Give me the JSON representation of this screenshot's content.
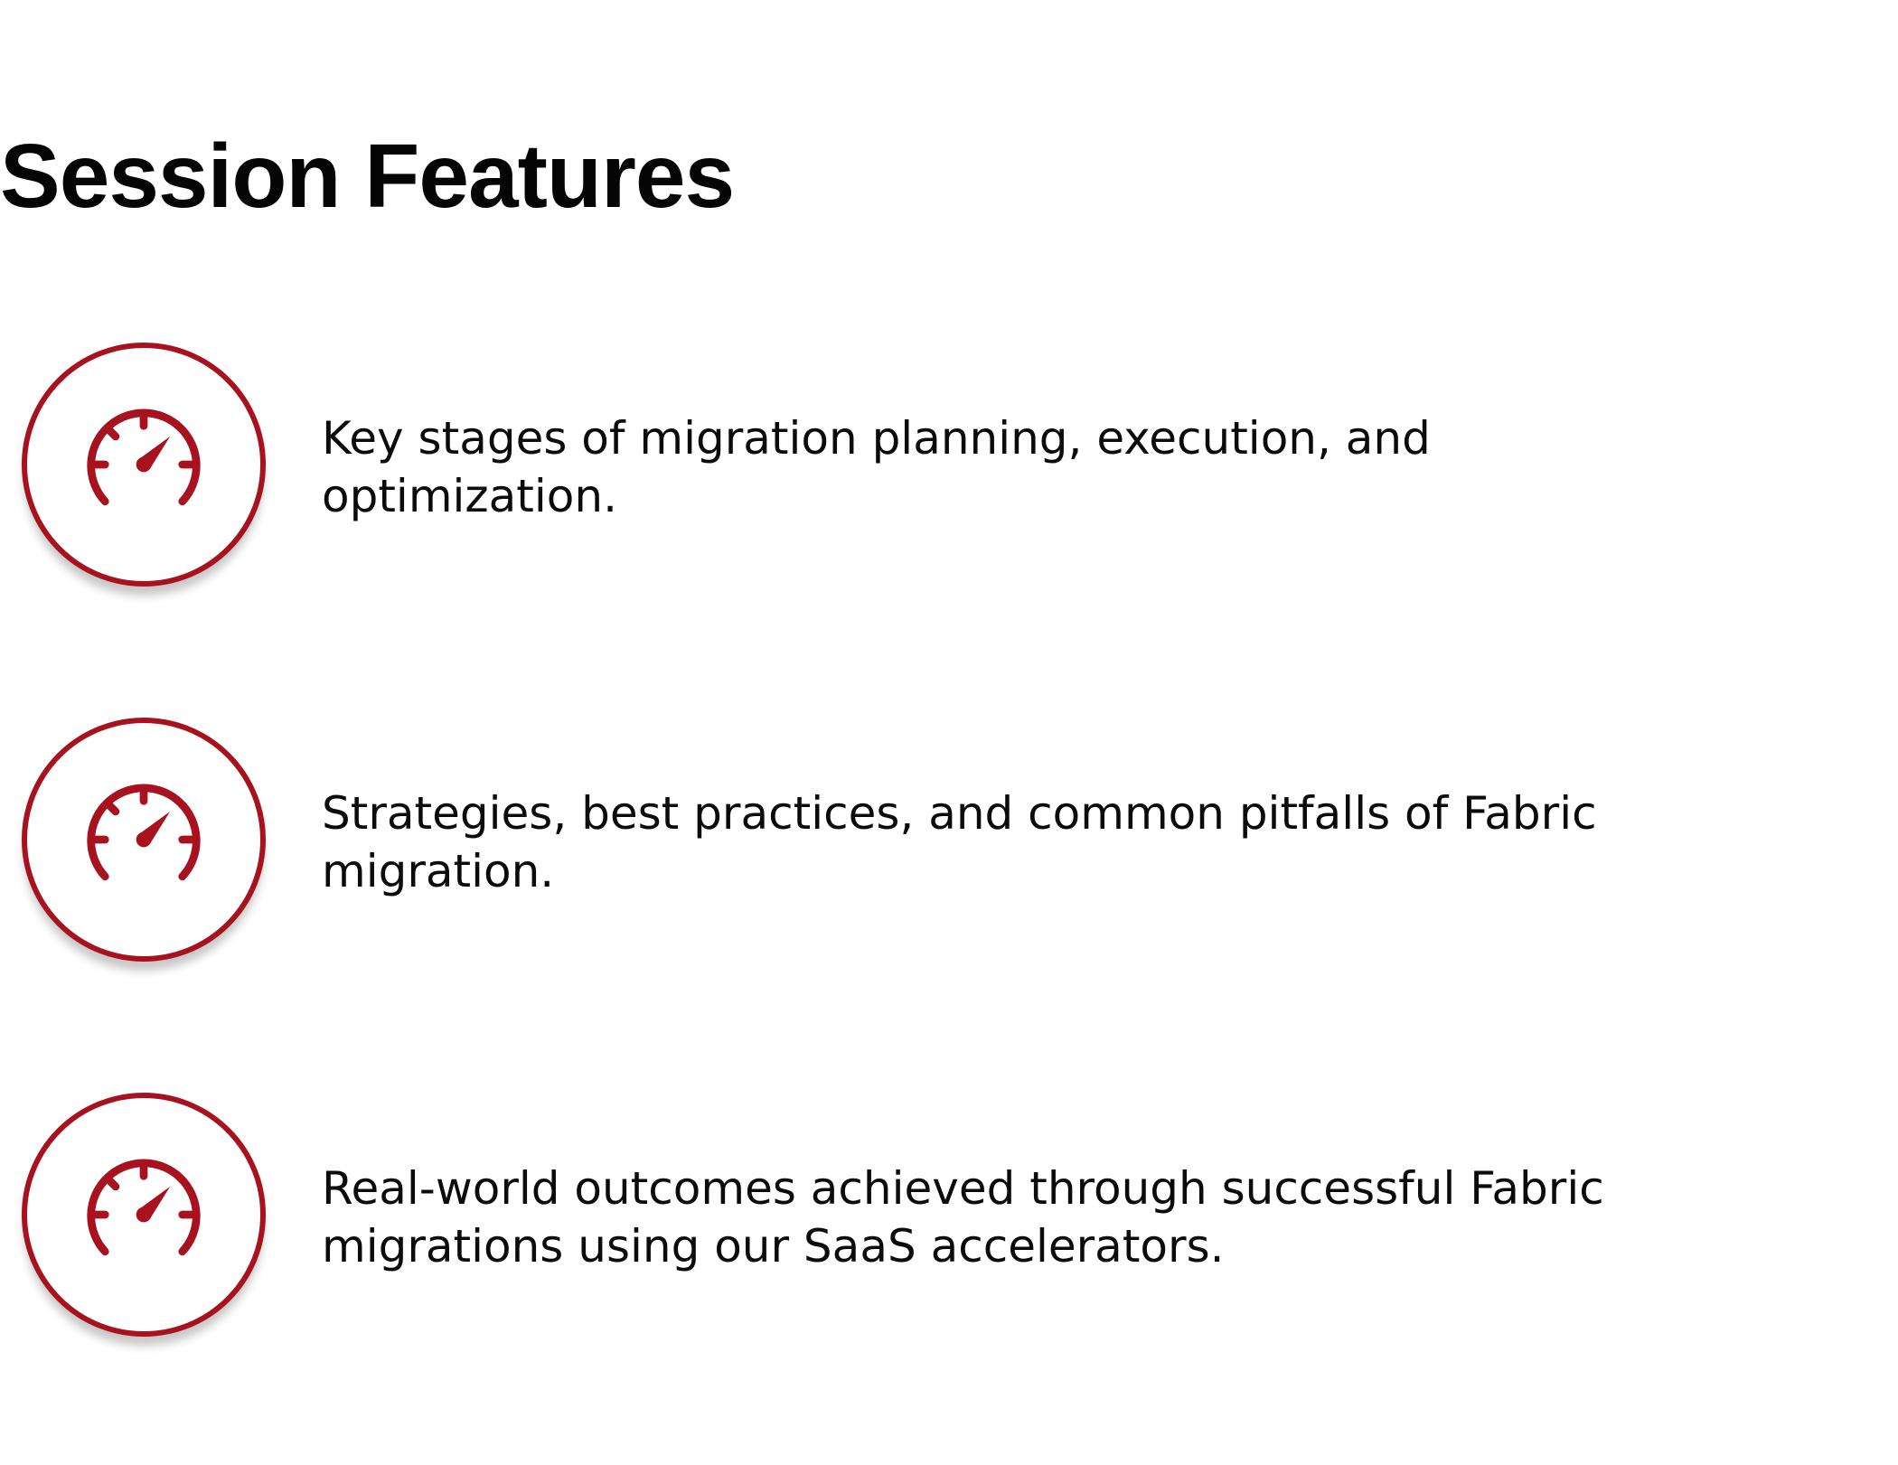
{
  "page": {
    "title": "Session Features"
  },
  "features": [
    {
      "icon": "speedometer-icon",
      "text": "Key stages of migration planning, execution, and optimization."
    },
    {
      "icon": "speedometer-icon",
      "text": "Strategies, best practices, and common pitfalls of Fabric migration."
    },
    {
      "icon": "speedometer-icon",
      "text": "Real-world outcomes achieved through successful Fabric migrations using our SaaS accelerators."
    }
  ],
  "colors": {
    "accent": "#a8121e",
    "text": "#0b0b0b",
    "background": "#ffffff"
  }
}
